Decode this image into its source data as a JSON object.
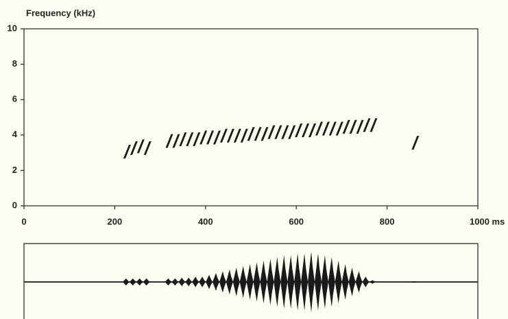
{
  "chart_data": {
    "type": "spectrogram",
    "ylabel": "Frequency (kHz)",
    "xlim": [
      0,
      1000
    ],
    "ylim": [
      0,
      10
    ],
    "xticks": [
      0,
      200,
      400,
      600,
      800,
      {
        "value": 1000,
        "label": "1000 ms"
      }
    ],
    "yticks": [
      0,
      2,
      4,
      6,
      8,
      10
    ],
    "color": "#1a1a1a",
    "x": [
      225,
      240,
      255,
      270,
      318,
      333,
      348,
      363,
      378,
      393,
      408,
      423,
      438,
      453,
      468,
      483,
      498,
      513,
      528,
      543,
      558,
      573,
      588,
      603,
      618,
      633,
      648,
      663,
      678,
      693,
      708,
      723,
      738,
      753,
      768,
      860
    ],
    "values": [
      3.1,
      3.3,
      3.4,
      3.3,
      3.7,
      3.7,
      3.8,
      3.8,
      3.8,
      3.9,
      3.9,
      3.9,
      4.0,
      4.0,
      4.0,
      4.0,
      4.1,
      4.1,
      4.1,
      4.2,
      4.2,
      4.2,
      4.2,
      4.3,
      4.3,
      4.3,
      4.4,
      4.4,
      4.4,
      4.4,
      4.5,
      4.5,
      4.5,
      4.6,
      4.6,
      3.6
    ],
    "amplitude": [
      0.1,
      0.1,
      0.1,
      0.1,
      0.1,
      0.1,
      0.12,
      0.12,
      0.15,
      0.15,
      0.2,
      0.25,
      0.3,
      0.35,
      0.4,
      0.45,
      0.5,
      0.55,
      0.6,
      0.65,
      0.7,
      0.75,
      0.75,
      0.8,
      0.8,
      0.85,
      0.8,
      0.75,
      0.7,
      0.6,
      0.5,
      0.4,
      0.3,
      0.15,
      0.05,
      0.02
    ]
  }
}
